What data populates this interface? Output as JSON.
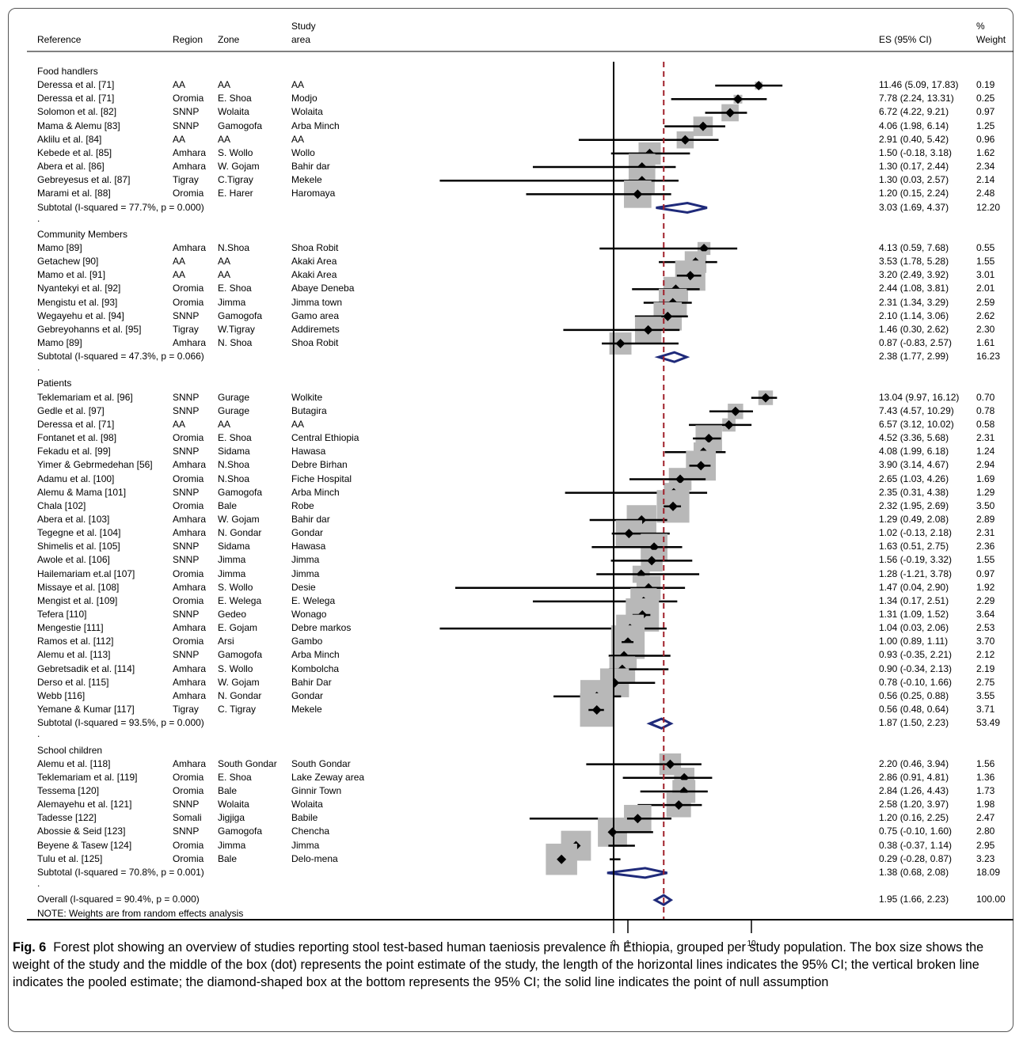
{
  "header": {
    "reference": "Reference",
    "region": "Region",
    "zone": "Zone",
    "study_area_line1": "Study",
    "study_area_line2": "area",
    "es": "ES (95% CI)",
    "weight_line1": "%",
    "weight_line2": "Weight"
  },
  "note": "NOTE: Weights are from random effects analysis",
  "axis_ticks": [
    "0",
    "1",
    "10"
  ],
  "caption": {
    "label": "Fig. 6",
    "text": "Forest plot showing an overview of studies reporting stool test-based human taeniosis prevalence in Ethiopia, grouped per study population. The box size shows the weight of the study and the middle of the box (dot) represents the point estimate of the study, the length of the horizontal lines indicates the 95% CI; the vertical broken line indicates the pooled estimate; the diamond-shaped box at the bottom represents the 95% CI; the solid line indicates the point of null assumption"
  },
  "colors": {
    "box": "#b8b8b8",
    "point": "#000000",
    "diamond": "#1f2a7a",
    "pooled_line": "#a0202a"
  },
  "chart_data": {
    "type": "forest",
    "x_scale": "log",
    "null_value": 0,
    "pooled_estimate": 1.95,
    "rows": [
      {
        "kind": "group",
        "label": "Food handlers"
      },
      {
        "kind": "study",
        "ref": "Deressa et al. [71]",
        "region": "AA",
        "zone": "AA",
        "area": "AA",
        "es_text": "11.46 (5.09, 17.83)",
        "w_text": "0.19",
        "es": 11.46,
        "lo": 5.09,
        "hi": 17.83,
        "w": 0.19
      },
      {
        "kind": "study",
        "ref": "Deressa et al. [71]",
        "region": "Oromia",
        "zone": "E. Shoa",
        "area": "Modjo",
        "es_text": "7.78 (2.24, 13.31)",
        "w_text": "0.25",
        "es": 7.78,
        "lo": 2.24,
        "hi": 13.31,
        "w": 0.25
      },
      {
        "kind": "study",
        "ref": "Solomon et al. [82]",
        "region": "SNNP",
        "zone": "Wolaita",
        "area": "Wolaita",
        "es_text": "6.72 (4.22, 9.21)",
        "w_text": "0.97",
        "es": 6.72,
        "lo": 4.22,
        "hi": 9.21,
        "w": 0.97
      },
      {
        "kind": "study",
        "ref": "Mama & Alemu [83]",
        "region": "SNNP",
        "zone": "Gamogofa",
        "area": "Arba Minch",
        "es_text": "4.06 (1.98, 6.14)",
        "w_text": "1.25",
        "es": 4.06,
        "lo": 1.98,
        "hi": 6.14,
        "w": 1.25
      },
      {
        "kind": "study",
        "ref": "Aklilu et al. [84]",
        "region": "AA",
        "zone": "AA",
        "area": "AA",
        "es_text": "2.91 (0.40, 5.42)",
        "w_text": "0.96",
        "es": 2.91,
        "lo": 0.4,
        "hi": 5.42,
        "w": 0.96
      },
      {
        "kind": "study",
        "ref": "Kebede et al. [85]",
        "region": "Amhara",
        "zone": "S. Wollo",
        "area": "Wollo",
        "es_text": "1.50 (-0.18, 3.18)",
        "w_text": "1.62",
        "es": 1.5,
        "lo": -0.18,
        "hi": 3.18,
        "w": 1.62
      },
      {
        "kind": "study",
        "ref": "Abera et al. [86]",
        "region": "Amhara",
        "zone": "W. Gojam",
        "area": "Bahir dar",
        "es_text": "1.30 (0.17, 2.44)",
        "w_text": "2.34",
        "es": 1.3,
        "lo": 0.17,
        "hi": 2.44,
        "w": 2.34
      },
      {
        "kind": "study",
        "ref": "Gebreyesus et al. [87]",
        "region": "Tigray",
        "zone": "C.Tigray",
        "area": "Mekele",
        "es_text": "1.30 (0.03, 2.57)",
        "w_text": "2.14",
        "es": 1.3,
        "lo": 0.03,
        "hi": 2.57,
        "w": 2.14
      },
      {
        "kind": "study",
        "ref": "Marami et al. [88]",
        "region": "Oromia",
        "zone": "E. Harer",
        "area": "Haromaya",
        "es_text": "1.20 (0.15, 2.24)",
        "w_text": "2.48",
        "es": 1.2,
        "lo": 0.15,
        "hi": 2.24,
        "w": 2.48
      },
      {
        "kind": "subtotal",
        "label": "Subtotal  (I-squared = 77.7%, p = 0.000)",
        "es_text": "3.03 (1.69, 4.37)",
        "w_text": "12.20",
        "es": 3.03,
        "lo": 1.69,
        "hi": 4.37
      },
      {
        "kind": "spacer",
        "label": "."
      },
      {
        "kind": "group",
        "label": "Community Members"
      },
      {
        "kind": "study",
        "ref": "Mamo [89]",
        "region": "Amhara",
        "zone": "N.Shoa",
        "area": "Shoa Robit",
        "es_text": "4.13 (0.59, 7.68)",
        "w_text": "0.55",
        "es": 4.13,
        "lo": 0.59,
        "hi": 7.68,
        "w": 0.55
      },
      {
        "kind": "study",
        "ref": "Getachew [90]",
        "region": "AA",
        "zone": "AA",
        "area": "Akaki Area",
        "es_text": "3.53 (1.78, 5.28)",
        "w_text": "1.55",
        "es": 3.53,
        "lo": 1.78,
        "hi": 5.28,
        "w": 1.55
      },
      {
        "kind": "study",
        "ref": "Mamo et al. [91]",
        "region": "AA",
        "zone": "AA",
        "area": "Akaki Area",
        "es_text": "3.20 (2.49, 3.92)",
        "w_text": "3.01",
        "es": 3.2,
        "lo": 2.49,
        "hi": 3.92,
        "w": 3.01
      },
      {
        "kind": "study",
        "ref": "Nyantekyi et al. [92]",
        "region": "Oromia",
        "zone": "E. Shoa",
        "area": "Abaye Deneba",
        "es_text": "2.44 (1.08, 3.81)",
        "w_text": "2.01",
        "es": 2.44,
        "lo": 1.08,
        "hi": 3.81,
        "w": 2.01
      },
      {
        "kind": "study",
        "ref": "Mengistu et al. [93]",
        "region": "Oromia",
        "zone": "Jimma",
        "area": "Jimma town",
        "es_text": "2.31 (1.34, 3.29)",
        "w_text": "2.59",
        "es": 2.31,
        "lo": 1.34,
        "hi": 3.29,
        "w": 2.59
      },
      {
        "kind": "study",
        "ref": "Wegayehu et al. [94]",
        "region": "SNNP",
        "zone": "Gamogofa",
        "area": "Gamo area",
        "es_text": "2.10 (1.14, 3.06)",
        "w_text": "2.62",
        "es": 2.1,
        "lo": 1.14,
        "hi": 3.06,
        "w": 2.62
      },
      {
        "kind": "study",
        "ref": "Gebreyohanns et al. [95]",
        "region": "Tigray",
        "zone": "W.Tigray",
        "area": "Addiremets",
        "es_text": "1.46 (0.30, 2.62)",
        "w_text": "2.30",
        "es": 1.46,
        "lo": 0.3,
        "hi": 2.62,
        "w": 2.3
      },
      {
        "kind": "study",
        "ref": "Mamo [89]",
        "region": "Amhara",
        "zone": "N. Shoa",
        "area": "Shoa Robit",
        "es_text": "0.87 (-0.83, 2.57)",
        "w_text": "1.61",
        "es": 0.87,
        "lo": -0.83,
        "hi": 2.57,
        "w": 1.61
      },
      {
        "kind": "subtotal",
        "label": "Subtotal  (I-squared = 47.3%, p = 0.066)",
        "es_text": "2.38 (1.77, 2.99)",
        "w_text": "16.23",
        "es": 2.38,
        "lo": 1.77,
        "hi": 2.99
      },
      {
        "kind": "spacer",
        "label": "."
      },
      {
        "kind": "group",
        "label": "Patients"
      },
      {
        "kind": "study",
        "ref": "Teklemariam et al. [96]",
        "region": "SNNP",
        "zone": "Gurage",
        "area": "Wolkite",
        "es_text": "13.04 (9.97, 16.12)",
        "w_text": "0.70",
        "es": 13.04,
        "lo": 9.97,
        "hi": 16.12,
        "w": 0.7
      },
      {
        "kind": "study",
        "ref": "Gedle et al. [97]",
        "region": "SNNP",
        "zone": "Gurage",
        "area": "Butagira",
        "es_text": "7.43 (4.57, 10.29)",
        "w_text": "0.78",
        "es": 7.43,
        "lo": 4.57,
        "hi": 10.29,
        "w": 0.78
      },
      {
        "kind": "study",
        "ref": "Deressa et al. [71]",
        "region": "AA",
        "zone": "AA",
        "area": "AA",
        "es_text": "6.57 (3.12, 10.02)",
        "w_text": "0.58",
        "es": 6.57,
        "lo": 3.12,
        "hi": 10.02,
        "w": 0.58
      },
      {
        "kind": "study",
        "ref": "Fontanet et al. [98]",
        "region": "Oromia",
        "zone": "E. Shoa",
        "area": "Central Ethiopia",
        "es_text": "4.52 (3.36, 5.68)",
        "w_text": "2.31",
        "es": 4.52,
        "lo": 3.36,
        "hi": 5.68,
        "w": 2.31
      },
      {
        "kind": "study",
        "ref": "Fekadu et al. [99]",
        "region": "SNNP",
        "zone": "Sidama",
        "area": "Hawasa",
        "es_text": "4.08 (1.99, 6.18)",
        "w_text": "1.24",
        "es": 4.08,
        "lo": 1.99,
        "hi": 6.18,
        "w": 1.24
      },
      {
        "kind": "study",
        "ref": "Yimer & Gebrmedehan [56]",
        "region": "Amhara",
        "zone": "N.Shoa",
        "area": "Debre Birhan",
        "es_text": "3.90 (3.14, 4.67)",
        "w_text": "2.94",
        "es": 3.9,
        "lo": 3.14,
        "hi": 4.67,
        "w": 2.94
      },
      {
        "kind": "study",
        "ref": "Adamu et al. [100]",
        "region": "Oromia",
        "zone": "N.Shoa",
        "area": "Fiche Hospital",
        "es_text": "2.65 (1.03, 4.26)",
        "w_text": "1.69",
        "es": 2.65,
        "lo": 1.03,
        "hi": 4.26,
        "w": 1.69
      },
      {
        "kind": "study",
        "ref": "Alemu & Mama [101]",
        "region": "SNNP",
        "zone": "Gamogofa",
        "area": "Arba Minch",
        "es_text": "2.35 (0.31, 4.38)",
        "w_text": "1.29",
        "es": 2.35,
        "lo": 0.31,
        "hi": 4.38,
        "w": 1.29
      },
      {
        "kind": "study",
        "ref": "Chala [102]",
        "region": "Oromia",
        "zone": "Bale",
        "area": "Robe",
        "es_text": "2.32 (1.95, 2.69)",
        "w_text": "3.50",
        "es": 2.32,
        "lo": 1.95,
        "hi": 2.69,
        "w": 3.5
      },
      {
        "kind": "study",
        "ref": "Abera et al. [103]",
        "region": "Amhara",
        "zone": "W. Gojam",
        "area": "Bahir dar",
        "es_text": "1.29 (0.49, 2.08)",
        "w_text": "2.89",
        "es": 1.29,
        "lo": 0.49,
        "hi": 2.08,
        "w": 2.89
      },
      {
        "kind": "study",
        "ref": "Tegegne et al. [104]",
        "region": "Amhara",
        "zone": "N. Gondar",
        "area": "Gondar",
        "es_text": "1.02 (-0.13, 2.18)",
        "w_text": "2.31",
        "es": 1.02,
        "lo": -0.13,
        "hi": 2.18,
        "w": 2.31
      },
      {
        "kind": "study",
        "ref": "Shimelis et al. [105]",
        "region": "SNNP",
        "zone": "Sidama",
        "area": "Hawasa",
        "es_text": "1.63 (0.51, 2.75)",
        "w_text": "2.36",
        "es": 1.63,
        "lo": 0.51,
        "hi": 2.75,
        "w": 2.36
      },
      {
        "kind": "study",
        "ref": "Awole et al. [106]",
        "region": "SNNP",
        "zone": "Jimma",
        "area": "Jimma",
        "es_text": "1.56 (-0.19, 3.32)",
        "w_text": "1.55",
        "es": 1.56,
        "lo": -0.19,
        "hi": 3.32,
        "w": 1.55
      },
      {
        "kind": "study",
        "ref": "Hailemariam et.al [107]",
        "region": "Oromia",
        "zone": "Jimma",
        "area": "Jimma",
        "es_text": "1.28 (-1.21, 3.78)",
        "w_text": "0.97",
        "es": 1.28,
        "lo": -1.21,
        "hi": 3.78,
        "w": 0.97
      },
      {
        "kind": "study",
        "ref": "Missaye et al. [108]",
        "region": "Amhara",
        "zone": "S. Wollo",
        "area": "Desie",
        "es_text": "1.47 (0.04, 2.90)",
        "w_text": "1.92",
        "es": 1.47,
        "lo": 0.04,
        "hi": 2.9,
        "w": 1.92
      },
      {
        "kind": "study",
        "ref": "Mengist et al. [109]",
        "region": "Oromia",
        "zone": "E. Welega",
        "area": "E. Welega",
        "es_text": "1.34 (0.17, 2.51)",
        "w_text": "2.29",
        "es": 1.34,
        "lo": 0.17,
        "hi": 2.51,
        "w": 2.29
      },
      {
        "kind": "study",
        "ref": "Tefera [110]",
        "region": "SNNP",
        "zone": "Gedeo",
        "area": "Wonago",
        "es_text": "1.31 (1.09, 1.52)",
        "w_text": "3.64",
        "es": 1.31,
        "lo": 1.09,
        "hi": 1.52,
        "w": 3.64
      },
      {
        "kind": "study",
        "ref": "Mengestie [111]",
        "region": "Amhara",
        "zone": "E. Gojam",
        "area": "Debre markos",
        "es_text": "1.04 (0.03, 2.06)",
        "w_text": "2.53",
        "es": 1.04,
        "lo": 0.03,
        "hi": 2.06,
        "w": 2.53
      },
      {
        "kind": "study",
        "ref": "Ramos et al. [112]",
        "region": "Oromia",
        "zone": "Arsi",
        "area": "Gambo",
        "es_text": "1.00 (0.89, 1.11)",
        "w_text": "3.70",
        "es": 1.0,
        "lo": 0.89,
        "hi": 1.11,
        "w": 3.7
      },
      {
        "kind": "study",
        "ref": "Alemu et al. [113]",
        "region": "SNNP",
        "zone": "Gamogofa",
        "area": "Arba Minch",
        "es_text": "0.93 (-0.35, 2.21)",
        "w_text": "2.12",
        "es": 0.93,
        "lo": -0.35,
        "hi": 2.21,
        "w": 2.12
      },
      {
        "kind": "study",
        "ref": "Gebretsadik et al. [114]",
        "region": "Amhara",
        "zone": "S. Wollo",
        "area": "Kombolcha",
        "es_text": "0.90 (-0.34, 2.13)",
        "w_text": "2.19",
        "es": 0.9,
        "lo": -0.34,
        "hi": 2.13,
        "w": 2.19
      },
      {
        "kind": "study",
        "ref": "Derso et al. [115]",
        "region": "Amhara",
        "zone": "W. Gojam",
        "area": "Bahir Dar",
        "es_text": "0.78 (-0.10, 1.66)",
        "w_text": "2.75",
        "es": 0.78,
        "lo": -0.1,
        "hi": 1.66,
        "w": 2.75
      },
      {
        "kind": "study",
        "ref": "Webb [116]",
        "region": "Amhara",
        "zone": "N. Gondar",
        "area": "Gondar",
        "es_text": "0.56 (0.25, 0.88)",
        "w_text": "3.55",
        "es": 0.56,
        "lo": 0.25,
        "hi": 0.88,
        "w": 3.55
      },
      {
        "kind": "study",
        "ref": "Yemane & Kumar [117]",
        "region": "Tigray",
        "zone": "C. Tigray",
        "area": "Mekele",
        "es_text": "0.56 (0.48, 0.64)",
        "w_text": "3.71",
        "es": 0.56,
        "lo": 0.48,
        "hi": 0.64,
        "w": 3.71
      },
      {
        "kind": "subtotal",
        "label": "Subtotal  (I-squared = 93.5%, p = 0.000)",
        "es_text": "1.87 (1.50, 2.23)",
        "w_text": "53.49",
        "es": 1.87,
        "lo": 1.5,
        "hi": 2.23
      },
      {
        "kind": "spacer",
        "label": "."
      },
      {
        "kind": "group",
        "label": "School children"
      },
      {
        "kind": "study",
        "ref": "Alemu et al. [118]",
        "region": "Amhara",
        "zone": "South Gondar",
        "area": "South Gondar",
        "es_text": "2.20 (0.46, 3.94)",
        "w_text": "1.56",
        "es": 2.2,
        "lo": 0.46,
        "hi": 3.94,
        "w": 1.56
      },
      {
        "kind": "study",
        "ref": "Teklemariam et al. [119]",
        "region": "Oromia",
        "zone": "E. Shoa",
        "area": "Lake Zeway area",
        "es_text": "2.86 (0.91, 4.81)",
        "w_text": "1.36",
        "es": 2.86,
        "lo": 0.91,
        "hi": 4.81,
        "w": 1.36
      },
      {
        "kind": "study",
        "ref": "Tessema [120]",
        "region": "Oromia",
        "zone": "Bale",
        "area": "Ginnir Town",
        "es_text": "2.84 (1.26, 4.43)",
        "w_text": "1.73",
        "es": 2.84,
        "lo": 1.26,
        "hi": 4.43,
        "w": 1.73
      },
      {
        "kind": "study",
        "ref": "Alemayehu et al. [121]",
        "region": "SNNP",
        "zone": "Wolaita",
        "area": "Wolaita",
        "es_text": "2.58 (1.20, 3.97)",
        "w_text": "1.98",
        "es": 2.58,
        "lo": 1.2,
        "hi": 3.97,
        "w": 1.98
      },
      {
        "kind": "study",
        "ref": "Tadesse [122]",
        "region": "Somali",
        "zone": "Jigjiga",
        "area": "Babile",
        "es_text": "1.20 (0.16, 2.25)",
        "w_text": "2.47",
        "es": 1.2,
        "lo": 0.16,
        "hi": 2.25,
        "w": 2.47
      },
      {
        "kind": "study",
        "ref": "Abossie & Seid [123]",
        "region": "SNNP",
        "zone": "Gamogofa",
        "area": "Chencha",
        "es_text": "0.75 (-0.10, 1.60)",
        "w_text": "2.80",
        "es": 0.75,
        "lo": -0.1,
        "hi": 1.6,
        "w": 2.8
      },
      {
        "kind": "study",
        "ref": "Beyene & Tasew [124]",
        "region": "Oromia",
        "zone": "Jimma",
        "area": "Jimma",
        "es_text": "0.38 (-0.37, 1.14)",
        "w_text": "2.95",
        "es": 0.38,
        "lo": -0.37,
        "hi": 1.14,
        "w": 2.95
      },
      {
        "kind": "study",
        "ref": "Tulu et al. [125]",
        "region": "Oromia",
        "zone": "Bale",
        "area": "Delo-mena",
        "es_text": "0.29 (-0.28, 0.87)",
        "w_text": "3.23",
        "es": 0.29,
        "lo": -0.28,
        "hi": 0.87,
        "w": 3.23
      },
      {
        "kind": "subtotal",
        "label": "Subtotal  (I-squared = 70.8%, p = 0.001)",
        "es_text": "1.38 (0.68, 2.08)",
        "w_text": "18.09",
        "es": 1.38,
        "lo": 0.68,
        "hi": 2.08
      },
      {
        "kind": "spacer",
        "label": "."
      },
      {
        "kind": "overall",
        "label": "Overall  (I-squared = 90.4%, p = 0.000)",
        "es_text": "1.95 (1.66, 2.23)",
        "w_text": "100.00",
        "es": 1.95,
        "lo": 1.66,
        "hi": 2.23
      }
    ]
  }
}
